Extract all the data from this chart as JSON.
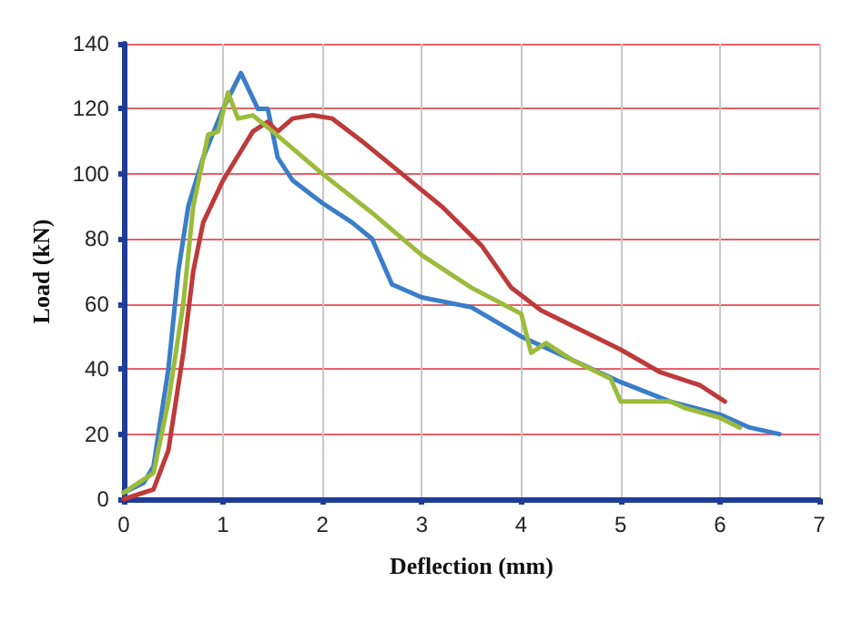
{
  "chart_data": {
    "type": "line",
    "xlabel": "Deflection (mm)",
    "ylabel": "Load (kN)",
    "xlim": [
      0,
      7
    ],
    "xticks": [
      0,
      1,
      2,
      3,
      4,
      5,
      6,
      7
    ],
    "ylim": [
      0,
      140
    ],
    "yticks": [
      0,
      20,
      40,
      60,
      80,
      100,
      120,
      140
    ],
    "grid": true,
    "marker": "none",
    "line_style": "solid",
    "series": [
      {
        "color": "#3a7dc9",
        "x": [
          0,
          0.2,
          0.3,
          0.45,
          0.55,
          0.65,
          0.8,
          1.0,
          1.18,
          1.35,
          1.45,
          1.55,
          1.7,
          2.0,
          2.3,
          2.5,
          2.7,
          3.0,
          3.5,
          4.0,
          4.5,
          5.0,
          5.5,
          6.0,
          6.3,
          6.6
        ],
        "values": [
          2,
          5,
          10,
          40,
          70,
          90,
          105,
          120,
          131,
          120,
          120,
          105,
          98,
          91,
          85,
          80,
          66,
          62,
          59,
          50,
          43,
          36,
          30,
          26,
          22,
          20
        ]
      },
      {
        "color": "#be3a3a",
        "x": [
          0,
          0.3,
          0.45,
          0.6,
          0.7,
          0.8,
          1.0,
          1.2,
          1.3,
          1.45,
          1.55,
          1.7,
          1.9,
          2.1,
          2.4,
          2.8,
          3.2,
          3.6,
          3.9,
          4.2,
          4.6,
          5.0,
          5.4,
          5.8,
          6.05
        ],
        "values": [
          0,
          3,
          15,
          45,
          70,
          85,
          98,
          108,
          113,
          116,
          113,
          117,
          118,
          117,
          110,
          100,
          90,
          78,
          65,
          58,
          52,
          46,
          39,
          35,
          30
        ]
      },
      {
        "color": "#9bbb3c",
        "x": [
          0,
          0.3,
          0.45,
          0.6,
          0.7,
          0.85,
          0.95,
          1.05,
          1.15,
          1.3,
          1.5,
          2.0,
          2.5,
          3.0,
          3.5,
          4.0,
          4.1,
          4.25,
          4.5,
          4.9,
          5.0,
          5.5,
          5.65,
          6.0,
          6.2
        ],
        "values": [
          2,
          8,
          30,
          60,
          90,
          112,
          113,
          125,
          117,
          118,
          113,
          100,
          88,
          75,
          65,
          57,
          45,
          48,
          43,
          37,
          30,
          30,
          28,
          25,
          22
        ]
      }
    ]
  }
}
